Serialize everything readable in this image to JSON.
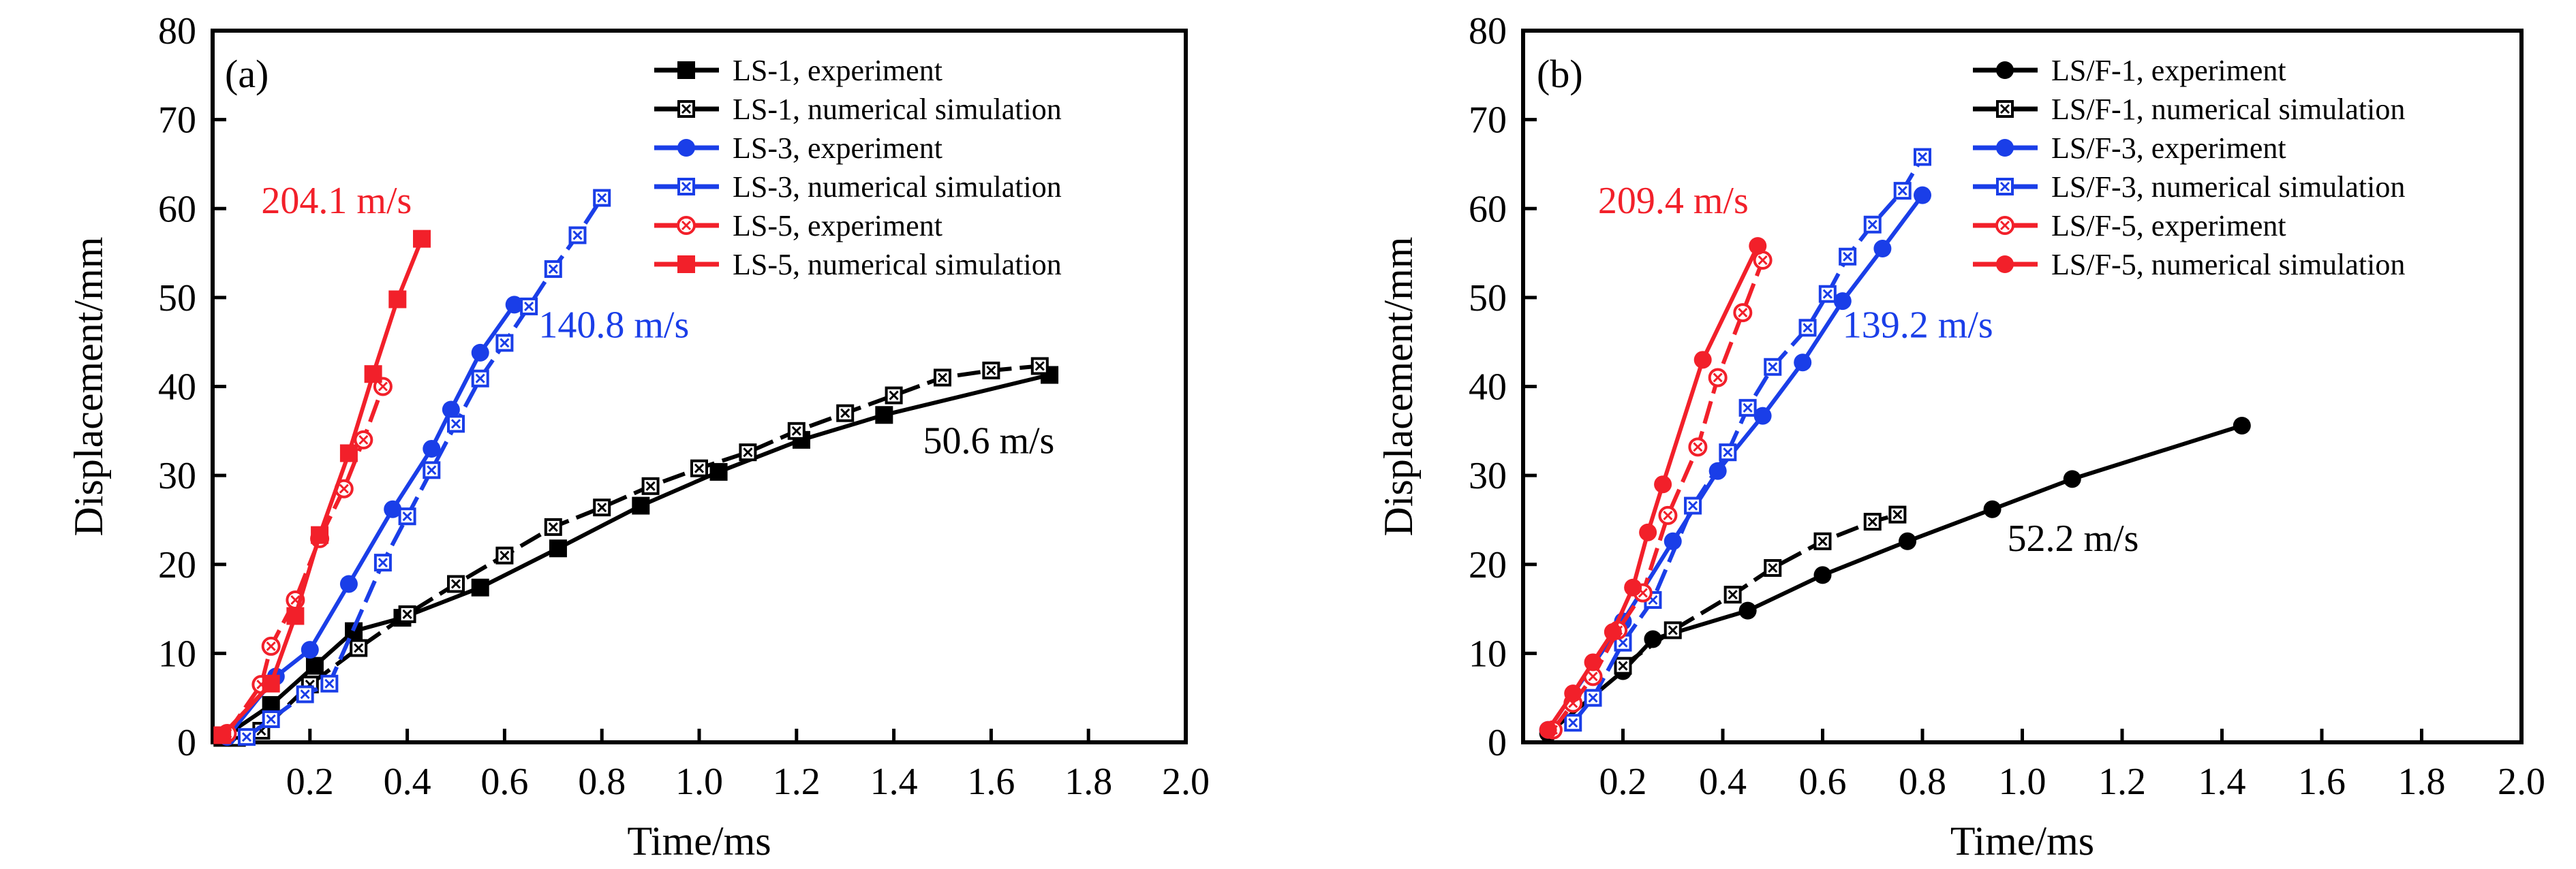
{
  "colors": {
    "black": "#000000",
    "blue": "#1a3ee8",
    "red": "#f2202a"
  },
  "chart_data": [
    {
      "type": "line",
      "panel_label": "(a)",
      "xlabel": "Time/ms",
      "ylabel": "Displacement/mm",
      "xlim": [
        0,
        2.0
      ],
      "ylim": [
        0,
        80
      ],
      "xticks": [
        "0.2",
        "0.4",
        "0.6",
        "0.8",
        "1.0",
        "1.2",
        "1.4",
        "1.6",
        "1.8",
        "2.0"
      ],
      "yticks": [
        "0",
        "10",
        "20",
        "30",
        "40",
        "50",
        "60",
        "70",
        "80"
      ],
      "legend_position": "top-right",
      "annotations": [
        {
          "text": "204.1 m/s",
          "color": "red",
          "x": 0.1,
          "y": 59.5
        },
        {
          "text": "140.8 m/s",
          "color": "blue",
          "x": 0.67,
          "y": 45.5
        },
        {
          "text": "50.6 m/s",
          "color": "black",
          "x": 1.46,
          "y": 32.5
        }
      ],
      "series": [
        {
          "name": "LS-1, experiment",
          "color": "black",
          "marker": "filled-square",
          "dashed": false,
          "x": [
            0.02,
            0.12,
            0.21,
            0.29,
            0.39,
            0.55,
            0.71,
            0.88,
            1.04,
            1.21,
            1.38,
            1.72
          ],
          "y": [
            0.5,
            4.2,
            8.6,
            12.5,
            14.0,
            17.4,
            21.8,
            26.6,
            30.4,
            34.0,
            36.8,
            41.3
          ]
        },
        {
          "name": "LS-1, numerical simulation",
          "color": "black",
          "marker": "crossed-square",
          "dashed": true,
          "x": [
            0.05,
            0.1,
            0.2,
            0.3,
            0.4,
            0.5,
            0.6,
            0.7,
            0.8,
            0.9,
            1.0,
            1.1,
            1.2,
            1.3,
            1.4,
            1.5,
            1.6,
            1.7
          ],
          "y": [
            0.5,
            1.3,
            6.5,
            10.6,
            14.4,
            17.8,
            21.0,
            24.2,
            26.4,
            28.8,
            30.8,
            32.6,
            35.0,
            37.0,
            39.0,
            41.0,
            41.8,
            42.3
          ]
        },
        {
          "name": "LS-3, experiment",
          "color": "blue",
          "marker": "filled-circle",
          "dashed": false,
          "x": [
            0.03,
            0.13,
            0.2,
            0.28,
            0.37,
            0.45,
            0.49,
            0.55,
            0.62
          ],
          "y": [
            0.6,
            7.4,
            10.4,
            17.8,
            26.2,
            33.0,
            37.4,
            43.8,
            49.2
          ]
        },
        {
          "name": "LS-3, numerical simulation",
          "color": "blue",
          "marker": "crossed-square",
          "dashed": true,
          "x": [
            0.07,
            0.12,
            0.19,
            0.24,
            0.35,
            0.4,
            0.45,
            0.5,
            0.55,
            0.6,
            0.65,
            0.7,
            0.75,
            0.8
          ],
          "y": [
            0.6,
            2.6,
            5.4,
            6.6,
            20.2,
            25.4,
            30.6,
            35.8,
            40.9,
            44.9,
            49.0,
            53.2,
            57.0,
            61.2
          ]
        },
        {
          "name": "LS-5, experiment",
          "color": "red",
          "marker": "crossed-circle",
          "dashed": true,
          "x": [
            0.03,
            0.1,
            0.12,
            0.17,
            0.22,
            0.27,
            0.31,
            0.35
          ],
          "y": [
            1.0,
            6.5,
            10.8,
            16.0,
            22.9,
            28.5,
            34.0,
            40.0
          ]
        },
        {
          "name": "LS-5, numerical simulation",
          "color": "red",
          "marker": "filled-square",
          "dashed": false,
          "x": [
            0.02,
            0.12,
            0.17,
            0.22,
            0.28,
            0.33,
            0.38,
            0.43
          ],
          "y": [
            0.8,
            6.6,
            14.2,
            23.3,
            32.5,
            41.4,
            49.8,
            56.6
          ]
        }
      ]
    },
    {
      "type": "line",
      "panel_label": "(b)",
      "xlabel": "Time/ms",
      "ylabel": "Displacement/mm",
      "xlim": [
        0,
        2.0
      ],
      "ylim": [
        0,
        80
      ],
      "xticks": [
        "0.2",
        "0.4",
        "0.6",
        "0.8",
        "1.0",
        "1.2",
        "1.4",
        "1.6",
        "1.8",
        "2.0"
      ],
      "yticks": [
        "0",
        "10",
        "20",
        "30",
        "40",
        "50",
        "60",
        "70",
        "80"
      ],
      "legend_position": "top-right",
      "annotations": [
        {
          "text": "209.4 m/s",
          "color": "red",
          "x": 0.15,
          "y": 59.5
        },
        {
          "text": "139.2 m/s",
          "color": "blue",
          "x": 0.64,
          "y": 45.5
        },
        {
          "text": "52.2 m/s",
          "color": "black",
          "x": 0.97,
          "y": 21.5
        }
      ],
      "series": [
        {
          "name": "LS/F-1, experiment",
          "color": "black",
          "marker": "filled-circle",
          "dashed": false,
          "x": [
            0.05,
            0.2,
            0.26,
            0.45,
            0.6,
            0.77,
            0.94,
            1.1,
            1.44
          ],
          "y": [
            1.0,
            8.0,
            11.6,
            14.8,
            18.8,
            22.6,
            26.2,
            29.6,
            35.6
          ]
        },
        {
          "name": "LS/F-1, numerical simulation",
          "color": "black",
          "marker": "crossed-square",
          "dashed": true,
          "x": [
            0.2,
            0.3,
            0.42,
            0.5,
            0.6,
            0.7,
            0.75
          ],
          "y": [
            8.6,
            12.6,
            16.6,
            19.6,
            22.6,
            24.8,
            25.6
          ]
        },
        {
          "name": "LS/F-3, experiment",
          "color": "blue",
          "marker": "filled-circle",
          "dashed": false,
          "x": [
            0.05,
            0.2,
            0.3,
            0.39,
            0.48,
            0.56,
            0.64,
            0.72,
            0.8
          ],
          "y": [
            1.4,
            13.6,
            22.6,
            30.5,
            36.7,
            42.7,
            49.6,
            55.5,
            61.5
          ]
        },
        {
          "name": "LS/F-3, numerical simulation",
          "color": "blue",
          "marker": "crossed-square",
          "dashed": true,
          "x": [
            0.1,
            0.14,
            0.2,
            0.26,
            0.34,
            0.41,
            0.45,
            0.5,
            0.57,
            0.61,
            0.65,
            0.7,
            0.76,
            0.8
          ],
          "y": [
            2.2,
            5.0,
            11.2,
            16.0,
            26.6,
            32.6,
            37.6,
            42.2,
            46.6,
            50.4,
            54.6,
            58.2,
            62.0,
            65.8
          ]
        },
        {
          "name": "LS/F-5, experiment",
          "color": "red",
          "marker": "crossed-circle",
          "dashed": true,
          "x": [
            0.06,
            0.1,
            0.14,
            0.19,
            0.24,
            0.29,
            0.35,
            0.39,
            0.44,
            0.48
          ],
          "y": [
            1.4,
            4.4,
            7.4,
            12.6,
            16.8,
            25.5,
            33.2,
            41.0,
            48.3,
            54.2
          ]
        },
        {
          "name": "LS/F-5, numerical simulation",
          "color": "red",
          "marker": "filled-circle",
          "dashed": false,
          "x": [
            0.05,
            0.1,
            0.14,
            0.18,
            0.22,
            0.25,
            0.28,
            0.36,
            0.47
          ],
          "y": [
            1.4,
            5.5,
            9.0,
            12.4,
            17.4,
            23.6,
            29.0,
            43.0,
            55.8
          ]
        }
      ]
    }
  ]
}
